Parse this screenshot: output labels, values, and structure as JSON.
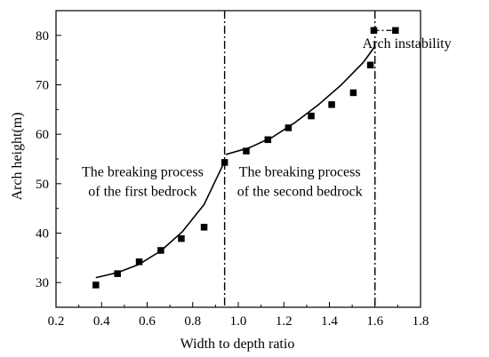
{
  "chart_data": {
    "type": "scatter",
    "xlabel": "Width to depth ratio",
    "ylabel": "Arch height(m)",
    "xlim": [
      0.2,
      1.8
    ],
    "ylim": [
      25,
      85
    ],
    "x_ticks": [
      "0.2",
      "0.4",
      "0.6",
      "0.8",
      "1.0",
      "1.2",
      "1.4",
      "1.6",
      "1.8"
    ],
    "y_ticks": [
      "30",
      "40",
      "50",
      "60",
      "70",
      "80"
    ],
    "series": [
      {
        "marker": "square",
        "color": "#000000",
        "points": [
          [
            0.375,
            29.5
          ],
          [
            0.47,
            31.8
          ],
          [
            0.565,
            34.2
          ],
          [
            0.66,
            36.5
          ],
          [
            0.75,
            38.9
          ],
          [
            0.85,
            41.2
          ],
          [
            0.94,
            54.3
          ],
          [
            1.035,
            56.6
          ],
          [
            1.13,
            58.9
          ],
          [
            1.22,
            61.3
          ],
          [
            1.32,
            63.7
          ],
          [
            1.41,
            66.0
          ],
          [
            1.505,
            68.4
          ],
          [
            1.58,
            74.0
          ],
          [
            1.595,
            81.0
          ],
          [
            1.69,
            81.0
          ]
        ]
      }
    ],
    "fit_curves": [
      {
        "color": "#000000",
        "x": [
          0.375,
          0.47,
          0.565,
          0.66,
          0.755,
          0.85,
          0.94
        ],
        "y": [
          31.0,
          32.0,
          33.7,
          36.4,
          40.3,
          45.8,
          54.5
        ]
      },
      {
        "color": "#000000",
        "x": [
          0.945,
          1.05,
          1.15,
          1.25,
          1.35,
          1.45,
          1.55,
          1.6
        ],
        "y": [
          55.9,
          57.3,
          59.4,
          62.4,
          65.9,
          69.9,
          74.6,
          77.8
        ]
      }
    ],
    "dashed_connector": {
      "x": [
        1.595,
        1.69
      ],
      "y": [
        81.0,
        81.0
      ]
    },
    "vertical_lines": [
      0.94,
      1.6
    ],
    "annotations": [
      {
        "lines": [
          "The breaking process",
          "of the first bedrock"
        ],
        "x": 0.58,
        "y": 51.5
      },
      {
        "lines": [
          "The breaking process",
          "of the second bedrock"
        ],
        "x": 1.27,
        "y": 51.5
      },
      {
        "lines": [
          "Arch instability"
        ],
        "x": 1.74,
        "y": 77.5
      }
    ],
    "grid": false,
    "legend": "none"
  }
}
